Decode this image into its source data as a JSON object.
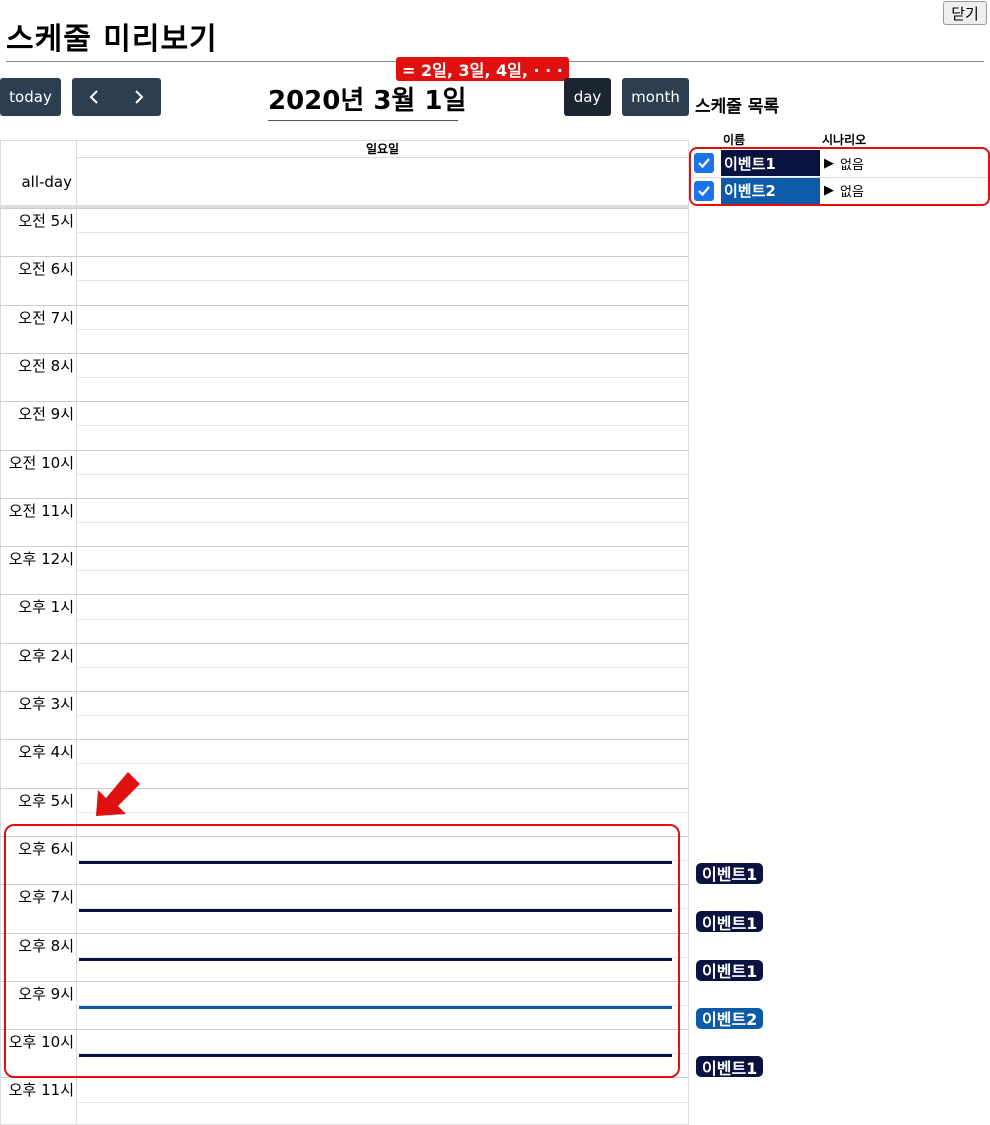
{
  "header": {
    "title": "스케줄 미리보기",
    "close_label": "닫기"
  },
  "toolbar": {
    "today_label": "today",
    "prev_icon": "‹",
    "next_icon": "›",
    "date_title": "2020년 3월 1일",
    "date_note": "= 2일, 3일, 4일, · · ·",
    "day_label": "day",
    "month_label": "month"
  },
  "schedule_list": {
    "title": "스케줄 목록",
    "col_name": "이름",
    "col_scenario": "시나리오",
    "items": [
      {
        "name": "이벤트1",
        "scenario": "없음",
        "checked": true,
        "color": "#0a1240"
      },
      {
        "name": "이벤트2",
        "scenario": "없음",
        "checked": true,
        "color": "#0d5aa8"
      }
    ]
  },
  "calendar": {
    "day_header": "일요일",
    "allday_label": "all-day",
    "hours": [
      "오전 5시",
      "오전 6시",
      "오전 7시",
      "오전 8시",
      "오전 9시",
      "오전 10시",
      "오전 11시",
      "오후 12시",
      "오후 1시",
      "오후 2시",
      "오후 3시",
      "오후 4시",
      "오후 5시",
      "오후 6시",
      "오후 7시",
      "오후 8시",
      "오후 9시",
      "오후 10시",
      "오후 11시"
    ],
    "events": [
      {
        "label": "이벤트1",
        "hour": "오후 6시",
        "color": "#0a1240"
      },
      {
        "label": "이벤트1",
        "hour": "오후 7시",
        "color": "#0a1240"
      },
      {
        "label": "이벤트1",
        "hour": "오후 8시",
        "color": "#0a1240"
      },
      {
        "label": "이벤트2",
        "hour": "오후 9시",
        "color": "#0d5aa8"
      },
      {
        "label": "이벤트1",
        "hour": "오후 10시",
        "color": "#0a1240"
      }
    ]
  },
  "colors": {
    "highlight": "#e01010",
    "button": "#2c3e50"
  }
}
